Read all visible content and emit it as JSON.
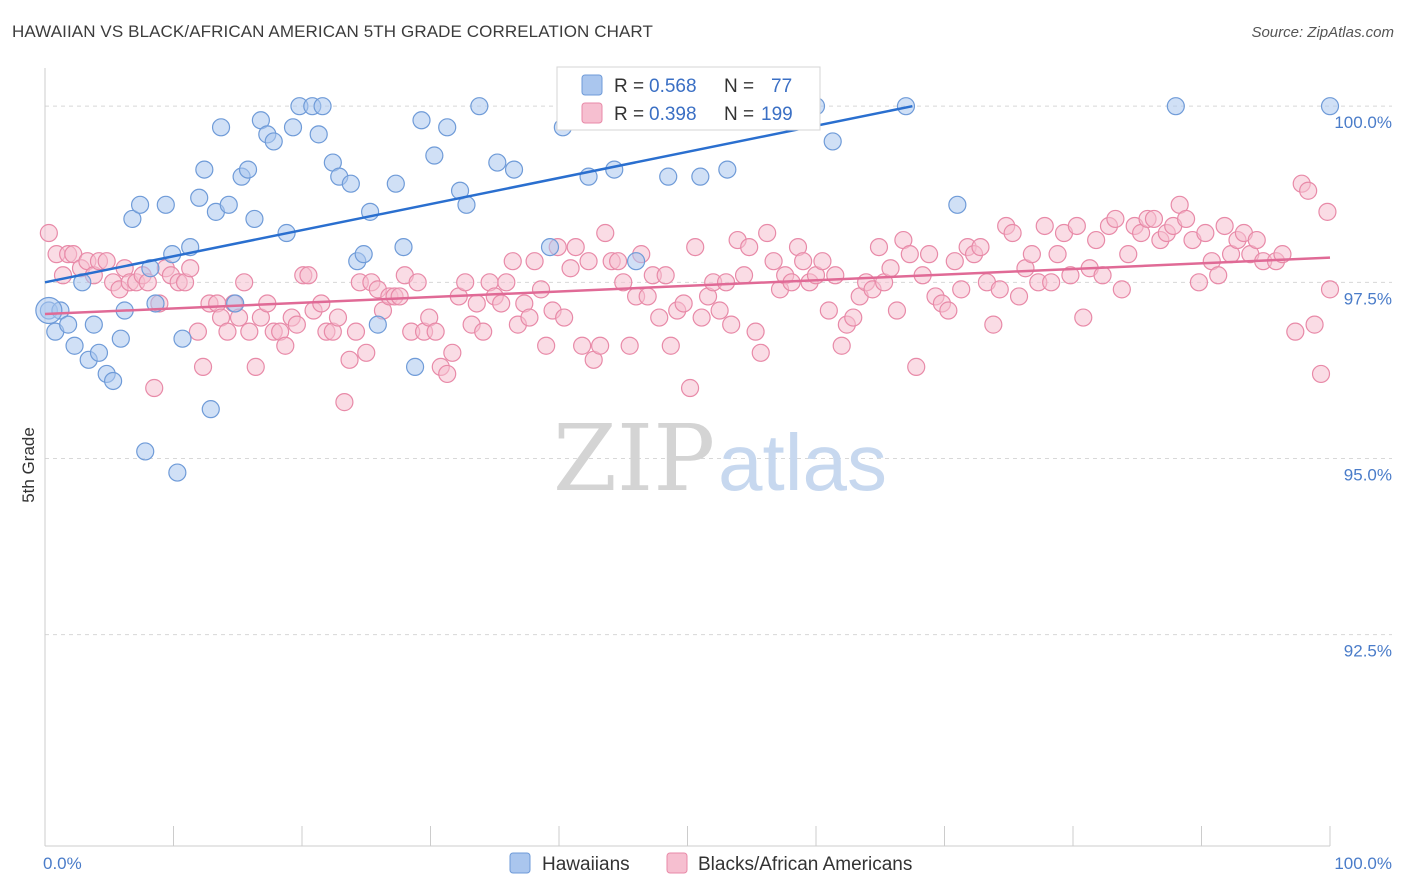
{
  "header": {
    "title": "HAWAIIAN VS BLACK/AFRICAN AMERICAN 5TH GRADE CORRELATION CHART",
    "source": "Source: ZipAtlas.com"
  },
  "watermark": {
    "zip": "ZIP",
    "atlas": "atlas"
  },
  "colors": {
    "blue_fill": "#aac6ee",
    "blue_stroke": "#6f9bd8",
    "blue_line": "#2a6fcf",
    "pink_fill": "#f6bfd0",
    "pink_stroke": "#e88aa8",
    "pink_line": "#e06a96",
    "tick_text": "#4a7cc9",
    "grid": "#d8d8d8"
  },
  "legend": {
    "rows": [
      {
        "r_label": "R = ",
        "r_value": "0.568",
        "n_label": "N = ",
        "n_value": "77"
      },
      {
        "r_label": "R = ",
        "r_value": "0.398",
        "n_label": "N = ",
        "n_value": "199"
      }
    ]
  },
  "chart_data": {
    "type": "scatter",
    "title": "HAWAIIAN VS BLACK/AFRICAN AMERICAN 5TH GRADE CORRELATION CHART",
    "xlabel": "",
    "ylabel": "5th Grade",
    "xlim": [
      0,
      100
    ],
    "ylim": [
      89.5,
      100.4
    ],
    "x_tick_labels": [
      "0.0%",
      "100.0%"
    ],
    "y_ticks": [
      92.5,
      95.0,
      97.5,
      100.0
    ],
    "y_tick_labels": [
      "92.5%",
      "95.0%",
      "97.5%",
      "100.0%"
    ],
    "grid": true,
    "legend_position": "top-center",
    "series": [
      {
        "name": "Hawaiians",
        "R": 0.568,
        "N": 77,
        "trend": {
          "x": [
            0,
            67.5
          ],
          "y": [
            97.5,
            100.0
          ]
        },
        "points": [
          [
            0.3,
            97.1
          ],
          [
            0.8,
            96.8
          ],
          [
            1.2,
            97.1
          ],
          [
            1.8,
            96.9
          ],
          [
            2.3,
            96.6
          ],
          [
            2.9,
            97.5
          ],
          [
            3.4,
            96.4
          ],
          [
            3.8,
            96.9
          ],
          [
            4.2,
            96.5
          ],
          [
            4.8,
            96.2
          ],
          [
            5.3,
            96.1
          ],
          [
            5.9,
            96.7
          ],
          [
            6.2,
            97.1
          ],
          [
            6.8,
            98.4
          ],
          [
            7.4,
            98.6
          ],
          [
            7.8,
            95.1
          ],
          [
            8.2,
            97.7
          ],
          [
            8.6,
            97.2
          ],
          [
            9.4,
            98.6
          ],
          [
            9.9,
            97.9
          ],
          [
            10.3,
            94.8
          ],
          [
            10.7,
            96.7
          ],
          [
            11.3,
            98.0
          ],
          [
            12.0,
            98.7
          ],
          [
            12.4,
            99.1
          ],
          [
            12.9,
            95.7
          ],
          [
            13.3,
            98.5
          ],
          [
            13.7,
            99.7
          ],
          [
            14.3,
            98.6
          ],
          [
            14.8,
            97.2
          ],
          [
            15.3,
            99.0
          ],
          [
            15.8,
            99.1
          ],
          [
            16.3,
            98.4
          ],
          [
            16.8,
            99.8
          ],
          [
            17.3,
            99.6
          ],
          [
            17.8,
            99.5
          ],
          [
            18.8,
            98.2
          ],
          [
            19.3,
            99.7
          ],
          [
            19.8,
            100.0
          ],
          [
            20.8,
            100.0
          ],
          [
            21.3,
            99.6
          ],
          [
            21.6,
            100.0
          ],
          [
            22.4,
            99.2
          ],
          [
            22.9,
            99.0
          ],
          [
            23.8,
            98.9
          ],
          [
            24.3,
            97.8
          ],
          [
            24.8,
            97.9
          ],
          [
            25.3,
            98.5
          ],
          [
            25.9,
            96.9
          ],
          [
            27.3,
            98.9
          ],
          [
            27.9,
            98.0
          ],
          [
            28.8,
            96.3
          ],
          [
            29.3,
            99.8
          ],
          [
            30.3,
            99.3
          ],
          [
            31.3,
            99.7
          ],
          [
            32.3,
            98.8
          ],
          [
            32.8,
            98.6
          ],
          [
            33.8,
            100.0
          ],
          [
            35.2,
            99.2
          ],
          [
            36.5,
            99.1
          ],
          [
            39.3,
            98.0
          ],
          [
            40.3,
            99.7
          ],
          [
            42.3,
            99.0
          ],
          [
            44.3,
            99.1
          ],
          [
            46.0,
            97.8
          ],
          [
            48.5,
            99.0
          ],
          [
            50.2,
            100.0
          ],
          [
            51.0,
            99.0
          ],
          [
            53.1,
            99.1
          ],
          [
            60.0,
            100.0
          ],
          [
            61.3,
            99.5
          ],
          [
            67.0,
            100.0
          ],
          [
            71.0,
            98.6
          ],
          [
            88.0,
            100.0
          ],
          [
            100.0,
            100.0
          ]
        ]
      },
      {
        "name": "Blacks/African Americans",
        "R": 0.398,
        "N": 199,
        "trend": {
          "x": [
            0,
            100
          ],
          "y": [
            97.05,
            97.85
          ]
        },
        "points": [
          [
            0.3,
            98.2
          ],
          [
            0.9,
            97.9
          ],
          [
            1.4,
            97.6
          ],
          [
            1.8,
            97.9
          ],
          [
            2.2,
            97.9
          ],
          [
            2.8,
            97.7
          ],
          [
            3.3,
            97.8
          ],
          [
            3.8,
            97.6
          ],
          [
            4.2,
            97.8
          ],
          [
            4.8,
            97.8
          ],
          [
            5.3,
            97.5
          ],
          [
            5.8,
            97.4
          ],
          [
            6.2,
            97.7
          ],
          [
            6.6,
            97.5
          ],
          [
            7.1,
            97.5
          ],
          [
            7.6,
            97.6
          ],
          [
            8.0,
            97.5
          ],
          [
            8.5,
            96.0
          ],
          [
            8.9,
            97.2
          ],
          [
            9.4,
            97.7
          ],
          [
            9.8,
            97.6
          ],
          [
            10.4,
            97.5
          ],
          [
            10.9,
            97.5
          ],
          [
            11.3,
            97.7
          ],
          [
            11.9,
            96.8
          ],
          [
            12.3,
            96.3
          ],
          [
            12.8,
            97.2
          ],
          [
            13.4,
            97.2
          ],
          [
            13.7,
            97.0
          ],
          [
            14.2,
            96.8
          ],
          [
            14.7,
            97.2
          ],
          [
            15.1,
            97.0
          ],
          [
            15.5,
            97.5
          ],
          [
            15.9,
            96.8
          ],
          [
            16.4,
            96.3
          ],
          [
            16.8,
            97.0
          ],
          [
            17.3,
            97.2
          ],
          [
            17.8,
            96.8
          ],
          [
            18.3,
            96.8
          ],
          [
            18.7,
            96.6
          ],
          [
            19.2,
            97.0
          ],
          [
            19.6,
            96.9
          ],
          [
            20.1,
            97.6
          ],
          [
            20.5,
            97.6
          ],
          [
            20.9,
            97.1
          ],
          [
            21.5,
            97.2
          ],
          [
            21.9,
            96.8
          ],
          [
            22.4,
            96.8
          ],
          [
            22.8,
            97.0
          ],
          [
            23.3,
            95.8
          ],
          [
            23.7,
            96.4
          ],
          [
            24.2,
            96.8
          ],
          [
            24.5,
            97.5
          ],
          [
            25.0,
            96.5
          ],
          [
            25.4,
            97.5
          ],
          [
            25.9,
            97.4
          ],
          [
            26.3,
            97.1
          ],
          [
            26.8,
            97.3
          ],
          [
            27.2,
            97.3
          ],
          [
            27.6,
            97.3
          ],
          [
            28.0,
            97.6
          ],
          [
            28.5,
            96.8
          ],
          [
            29.0,
            97.5
          ],
          [
            29.5,
            96.8
          ],
          [
            29.9,
            97.0
          ],
          [
            30.4,
            96.8
          ],
          [
            30.8,
            96.3
          ],
          [
            31.3,
            96.2
          ],
          [
            31.7,
            96.5
          ],
          [
            32.2,
            97.3
          ],
          [
            32.7,
            97.5
          ],
          [
            33.2,
            96.9
          ],
          [
            33.6,
            97.2
          ],
          [
            34.1,
            96.8
          ],
          [
            34.6,
            97.5
          ],
          [
            35.0,
            97.3
          ],
          [
            35.5,
            97.2
          ],
          [
            35.9,
            97.5
          ],
          [
            36.4,
            97.8
          ],
          [
            36.8,
            96.9
          ],
          [
            37.3,
            97.2
          ],
          [
            37.7,
            97.0
          ],
          [
            38.1,
            97.8
          ],
          [
            38.6,
            97.4
          ],
          [
            39.0,
            96.6
          ],
          [
            39.5,
            97.1
          ],
          [
            39.9,
            98.0
          ],
          [
            40.4,
            97.0
          ],
          [
            40.9,
            97.7
          ],
          [
            41.3,
            98.0
          ],
          [
            41.8,
            96.6
          ],
          [
            42.3,
            97.8
          ],
          [
            42.7,
            96.4
          ],
          [
            43.2,
            96.6
          ],
          [
            43.6,
            98.2
          ],
          [
            44.1,
            97.8
          ],
          [
            44.6,
            97.8
          ],
          [
            45.0,
            97.5
          ],
          [
            45.5,
            96.6
          ],
          [
            46.0,
            97.3
          ],
          [
            46.4,
            97.9
          ],
          [
            46.9,
            97.3
          ],
          [
            47.3,
            97.6
          ],
          [
            47.8,
            97.0
          ],
          [
            48.3,
            97.6
          ],
          [
            48.7,
            96.6
          ],
          [
            49.2,
            97.1
          ],
          [
            49.7,
            97.2
          ],
          [
            50.2,
            96.0
          ],
          [
            50.6,
            98.0
          ],
          [
            51.1,
            97.0
          ],
          [
            51.6,
            97.3
          ],
          [
            52.0,
            97.5
          ],
          [
            52.5,
            97.1
          ],
          [
            53.0,
            97.5
          ],
          [
            53.4,
            96.9
          ],
          [
            53.9,
            98.1
          ],
          [
            54.4,
            97.6
          ],
          [
            54.8,
            98.0
          ],
          [
            55.3,
            96.8
          ],
          [
            55.7,
            96.5
          ],
          [
            56.2,
            98.2
          ],
          [
            56.7,
            97.8
          ],
          [
            57.2,
            97.4
          ],
          [
            57.6,
            97.6
          ],
          [
            58.1,
            97.5
          ],
          [
            58.6,
            98.0
          ],
          [
            59.0,
            97.8
          ],
          [
            59.5,
            97.5
          ],
          [
            60.0,
            97.6
          ],
          [
            60.5,
            97.8
          ],
          [
            61.0,
            97.1
          ],
          [
            61.5,
            97.6
          ],
          [
            62.0,
            96.6
          ],
          [
            62.4,
            96.9
          ],
          [
            62.9,
            97.0
          ],
          [
            63.4,
            97.3
          ],
          [
            63.9,
            97.5
          ],
          [
            64.4,
            97.4
          ],
          [
            64.9,
            98.0
          ],
          [
            65.3,
            97.5
          ],
          [
            65.8,
            97.7
          ],
          [
            66.3,
            97.1
          ],
          [
            66.8,
            98.1
          ],
          [
            67.3,
            97.9
          ],
          [
            67.8,
            96.3
          ],
          [
            68.3,
            97.6
          ],
          [
            68.8,
            97.9
          ],
          [
            69.3,
            97.3
          ],
          [
            69.8,
            97.2
          ],
          [
            70.3,
            97.1
          ],
          [
            70.8,
            97.8
          ],
          [
            71.3,
            97.4
          ],
          [
            71.8,
            98.0
          ],
          [
            72.3,
            97.9
          ],
          [
            72.8,
            98.0
          ],
          [
            73.3,
            97.5
          ],
          [
            73.8,
            96.9
          ],
          [
            74.3,
            97.4
          ],
          [
            74.8,
            98.3
          ],
          [
            75.3,
            98.2
          ],
          [
            75.8,
            97.3
          ],
          [
            76.3,
            97.7
          ],
          [
            76.8,
            97.9
          ],
          [
            77.3,
            97.5
          ],
          [
            77.8,
            98.3
          ],
          [
            78.3,
            97.5
          ],
          [
            78.8,
            97.9
          ],
          [
            79.3,
            98.2
          ],
          [
            79.8,
            97.6
          ],
          [
            80.3,
            98.3
          ],
          [
            80.8,
            97.0
          ],
          [
            81.3,
            97.7
          ],
          [
            81.8,
            98.1
          ],
          [
            82.3,
            97.6
          ],
          [
            82.8,
            98.3
          ],
          [
            83.3,
            98.4
          ],
          [
            83.8,
            97.4
          ],
          [
            84.3,
            97.9
          ],
          [
            84.8,
            98.3
          ],
          [
            85.3,
            98.2
          ],
          [
            85.8,
            98.4
          ],
          [
            86.3,
            98.4
          ],
          [
            86.8,
            98.1
          ],
          [
            87.3,
            98.2
          ],
          [
            87.8,
            98.3
          ],
          [
            88.3,
            98.6
          ],
          [
            88.8,
            98.4
          ],
          [
            89.3,
            98.1
          ],
          [
            89.8,
            97.5
          ],
          [
            90.3,
            98.2
          ],
          [
            90.8,
            97.8
          ],
          [
            91.3,
            97.6
          ],
          [
            91.8,
            98.3
          ],
          [
            92.3,
            97.9
          ],
          [
            92.8,
            98.1
          ],
          [
            93.3,
            98.2
          ],
          [
            93.8,
            97.9
          ],
          [
            94.3,
            98.1
          ],
          [
            94.8,
            97.8
          ],
          [
            95.8,
            97.8
          ],
          [
            97.8,
            98.9
          ],
          [
            98.3,
            98.8
          ],
          [
            98.8,
            96.9
          ],
          [
            99.3,
            96.2
          ],
          [
            99.8,
            98.5
          ],
          [
            100.0,
            97.4
          ],
          [
            97.3,
            96.8
          ],
          [
            96.3,
            97.9
          ]
        ]
      }
    ]
  }
}
